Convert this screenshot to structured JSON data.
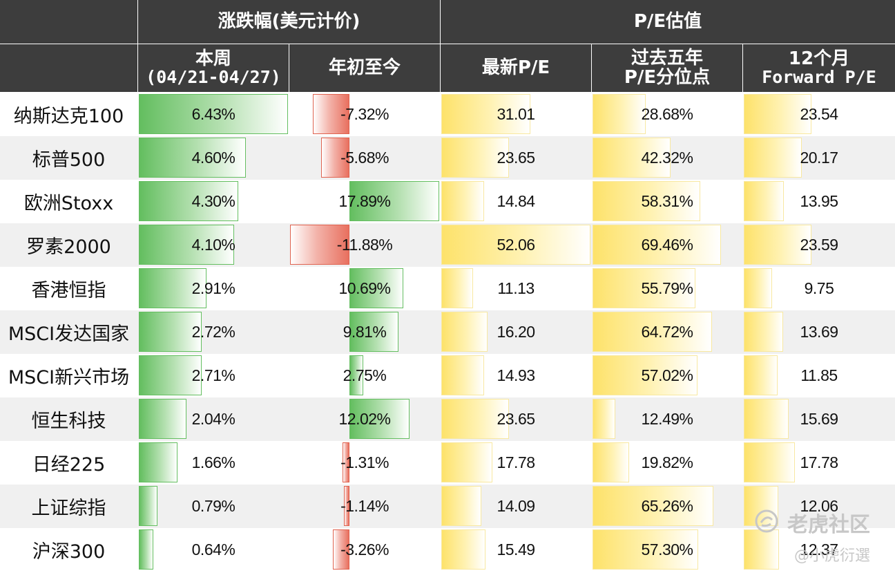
{
  "header": {
    "group_change": "涨跌幅(美元计价)",
    "group_pe": "P/E估值",
    "col_week": "本周",
    "col_week_range": "(04/21-04/27)",
    "col_ytd": "年初至今",
    "col_pe_latest": "最新P/E",
    "col_pe_pct_line1": "过去五年",
    "col_pe_pct_line2": "P/E分位点",
    "col_fwd_line1": "12个月",
    "col_fwd_line2": "Forward P/E"
  },
  "rows": [
    {
      "name": "纳斯达克100",
      "week": "6.43%",
      "ytd": "-7.32%",
      "pe": "31.01",
      "pe_pct": "28.68%",
      "fwd": "23.54"
    },
    {
      "name": "标普500",
      "week": "4.60%",
      "ytd": "-5.68%",
      "pe": "23.65",
      "pe_pct": "42.32%",
      "fwd": "20.17"
    },
    {
      "name": "欧洲Stoxx",
      "week": "4.30%",
      "ytd": "17.89%",
      "pe": "14.84",
      "pe_pct": "58.31%",
      "fwd": "13.95"
    },
    {
      "name": "罗素2000",
      "week": "4.10%",
      "ytd": "-11.88%",
      "pe": "52.06",
      "pe_pct": "69.46%",
      "fwd": "23.59"
    },
    {
      "name": "香港恒指",
      "week": "2.91%",
      "ytd": "10.69%",
      "pe": "11.13",
      "pe_pct": "55.79%",
      "fwd": "9.75"
    },
    {
      "name": "MSCI发达国家",
      "week": "2.72%",
      "ytd": "9.81%",
      "pe": "16.20",
      "pe_pct": "64.72%",
      "fwd": "13.69"
    },
    {
      "name": "MSCI新兴市场",
      "week": "2.71%",
      "ytd": "2.75%",
      "pe": "14.93",
      "pe_pct": "57.02%",
      "fwd": "11.85"
    },
    {
      "name": "恒生科技",
      "week": "2.04%",
      "ytd": "12.02%",
      "pe": "23.65",
      "pe_pct": "12.49%",
      "fwd": "15.69"
    },
    {
      "name": "日经225",
      "week": "1.66%",
      "ytd": "-1.31%",
      "pe": "17.78",
      "pe_pct": "19.82%",
      "fwd": "17.78"
    },
    {
      "name": "上证综指",
      "week": "0.79%",
      "ytd": "-1.14%",
      "pe": "14.09",
      "pe_pct": "65.26%",
      "fwd": "12.06"
    },
    {
      "name": "沪深300",
      "week": "0.64%",
      "ytd": "-3.26%",
      "pe": "15.49",
      "pe_pct": "57.30%",
      "fwd": "12.37"
    }
  ],
  "colors": {
    "header_bg": "#3d3d3d",
    "positive_bar": "#63be5f",
    "negative_bar": "#e8705f",
    "valuation_bar": "#fde26a",
    "alt_row": "#f0f0f0"
  },
  "watermark": {
    "text": "老虎社区",
    "sub": "@小虎衍選"
  }
}
